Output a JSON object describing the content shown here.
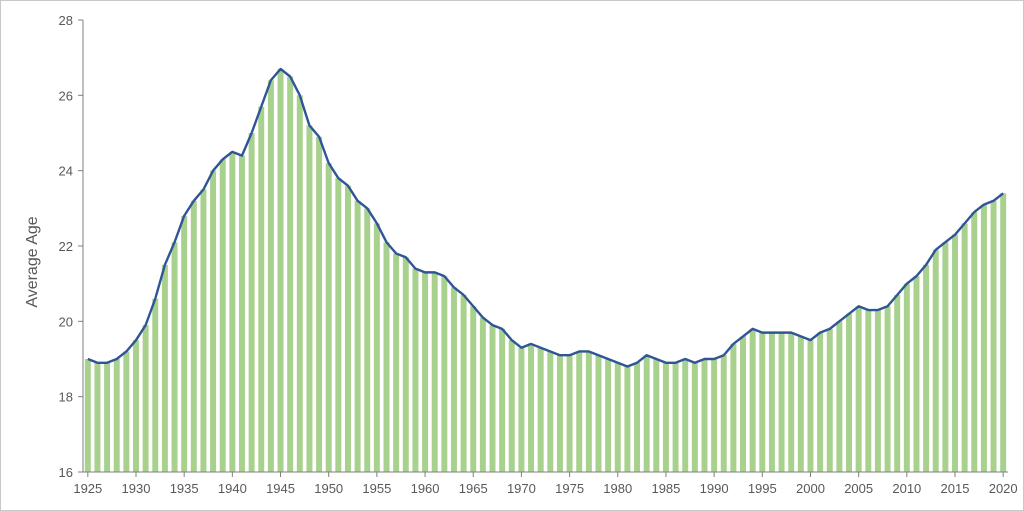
{
  "chart_data": {
    "type": "area",
    "title": "",
    "xlabel": "",
    "ylabel": "Average Age",
    "xlim": [
      1925,
      2020
    ],
    "ylim": [
      16,
      28
    ],
    "yticks": [
      16,
      18,
      20,
      22,
      24,
      26,
      28
    ],
    "xticks": [
      1925,
      1930,
      1935,
      1940,
      1945,
      1950,
      1955,
      1960,
      1965,
      1970,
      1975,
      1980,
      1985,
      1990,
      1995,
      2000,
      2005,
      2010,
      2015,
      2020
    ],
    "grid": false,
    "legend": "none",
    "colors": {
      "line": "#2f5597",
      "fill": "#a9d18e",
      "axis": "#7f7f7f",
      "text": "#595959"
    },
    "x": [
      1925,
      1926,
      1927,
      1928,
      1929,
      1930,
      1931,
      1932,
      1933,
      1934,
      1935,
      1936,
      1937,
      1938,
      1939,
      1940,
      1941,
      1942,
      1943,
      1944,
      1945,
      1946,
      1947,
      1948,
      1949,
      1950,
      1951,
      1952,
      1953,
      1954,
      1955,
      1956,
      1957,
      1958,
      1959,
      1960,
      1961,
      1962,
      1963,
      1964,
      1965,
      1966,
      1967,
      1968,
      1969,
      1970,
      1971,
      1972,
      1973,
      1974,
      1975,
      1976,
      1977,
      1978,
      1979,
      1980,
      1981,
      1982,
      1983,
      1984,
      1985,
      1986,
      1987,
      1988,
      1989,
      1990,
      1991,
      1992,
      1993,
      1994,
      1995,
      1996,
      1997,
      1998,
      1999,
      2000,
      2001,
      2002,
      2003,
      2004,
      2005,
      2006,
      2007,
      2008,
      2009,
      2010,
      2011,
      2012,
      2013,
      2014,
      2015,
      2016,
      2017,
      2018,
      2019,
      2020
    ],
    "series": [
      {
        "values": [
          19.0,
          18.9,
          18.9,
          19.0,
          19.2,
          19.5,
          19.9,
          20.6,
          21.5,
          22.1,
          22.8,
          23.2,
          23.5,
          24.0,
          24.3,
          24.5,
          24.4,
          25.0,
          25.7,
          26.4,
          26.7,
          26.5,
          26.0,
          25.2,
          24.9,
          24.2,
          23.8,
          23.6,
          23.2,
          23.0,
          22.6,
          22.1,
          21.8,
          21.7,
          21.4,
          21.3,
          21.3,
          21.2,
          20.9,
          20.7,
          20.4,
          20.1,
          19.9,
          19.8,
          19.5,
          19.3,
          19.4,
          19.3,
          19.2,
          19.1,
          19.1,
          19.2,
          19.2,
          19.1,
          19.0,
          18.9,
          18.8,
          18.9,
          19.1,
          19.0,
          18.9,
          18.9,
          19.0,
          18.9,
          19.0,
          19.0,
          19.1,
          19.4,
          19.6,
          19.8,
          19.7,
          19.7,
          19.7,
          19.7,
          19.6,
          19.5,
          19.7,
          19.8,
          20.0,
          20.2,
          20.4,
          20.3,
          20.3,
          20.4,
          20.7,
          21.0,
          21.2,
          21.5,
          21.9,
          22.1,
          22.3,
          22.6,
          22.9,
          23.1,
          23.2,
          23.4
        ]
      }
    ]
  }
}
